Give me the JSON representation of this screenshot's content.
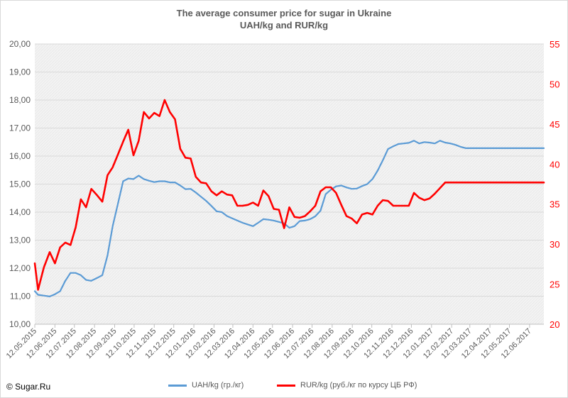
{
  "chart_data": {
    "type": "line",
    "title": "The average consumer price for sugar in Ukraine",
    "subtitle": "UAH/kg and RUR/kg",
    "x_ticks": [
      "12.05.2015",
      "12.06.2015",
      "12.07.2015",
      "12.08.2015",
      "12.09.2015",
      "12.10.2015",
      "12.11.2015",
      "12.12.2015",
      "12.01.2016",
      "12.02.2016",
      "12.03.2016",
      "12.04.2016",
      "12.05.2016",
      "12.06.2016",
      "12.07.2016",
      "12.08.2016",
      "12.09.2016",
      "12.10.2016",
      "12.11.2016",
      "12.12.2016",
      "12.01.2017",
      "12.02.2017",
      "12.03.2017",
      "12.04.2017",
      "12.05.2017",
      "12.06.2017"
    ],
    "y_left": {
      "ylim": [
        10,
        20
      ],
      "ticks": [
        "10,00",
        "11,00",
        "12,00",
        "13,00",
        "14,00",
        "15,00",
        "16,00",
        "17,00",
        "18,00",
        "19,00",
        "20,00"
      ]
    },
    "y_right": {
      "ylim": [
        20,
        55
      ],
      "ticks": [
        "20",
        "25",
        "30",
        "35",
        "40",
        "45",
        "50",
        "55"
      ]
    },
    "grid": "horizontal",
    "legend_position": "bottom",
    "colors": {
      "uah": "#5b9bd5",
      "rur": "#ff0000",
      "plot_bg": "#f2f2f2",
      "grid": "#d9d9d9"
    },
    "series": [
      {
        "name": "UAH/kg  (гр./кг)",
        "axis": "left",
        "x": [
          "12.05.2015",
          "17.05.2015",
          "26.05.2015",
          "04.06.2015",
          "12.06.2015",
          "20.06.2015",
          "28.06.2015",
          "06.07.2015",
          "14.07.2015",
          "22.07.2015",
          "30.07.2015",
          "07.08.2015",
          "16.08.2015",
          "24.08.2015",
          "01.09.2015",
          "09.09.2015",
          "17.09.2015",
          "25.09.2015",
          "03.10.2015",
          "11.10.2015",
          "19.10.2015",
          "27.10.2015",
          "04.11.2015",
          "12.11.2015",
          "20.11.2015",
          "28.11.2015",
          "06.12.2015",
          "14.12.2015",
          "22.12.2015",
          "30.12.2015",
          "07.01.2016",
          "15.01.2016",
          "23.01.2016",
          "31.01.2016",
          "08.02.2016",
          "16.02.2016",
          "24.02.2016",
          "03.03.2016",
          "11.03.2016",
          "19.03.2016",
          "27.03.2016",
          "04.04.2016",
          "12.04.2016",
          "20.04.2016",
          "28.04.2016",
          "06.05.2016",
          "14.05.2016",
          "22.05.2016",
          "30.05.2016",
          "07.06.2016",
          "15.06.2016",
          "23.06.2016",
          "01.07.2016",
          "09.07.2016",
          "17.07.2016",
          "25.07.2016",
          "02.08.2016",
          "10.08.2016",
          "18.08.2016",
          "26.08.2016",
          "03.09.2016",
          "11.09.2016",
          "19.09.2016",
          "27.09.2016",
          "05.10.2016",
          "13.10.2016",
          "21.10.2016",
          "29.10.2016",
          "06.11.2016",
          "14.11.2016",
          "22.11.2016",
          "30.11.2016",
          "08.12.2016",
          "16.12.2016",
          "24.12.2016",
          "01.01.2017",
          "09.01.2017",
          "17.01.2017",
          "25.01.2017",
          "02.02.2017",
          "10.02.2017",
          "18.02.2017",
          "26.02.2017",
          "06.03.2017",
          "14.03.2017",
          "22.03.2017",
          "30.03.2017",
          "07.04.2017",
          "15.04.2017",
          "23.04.2017",
          "01.05.2017",
          "09.05.2017",
          "17.05.2017",
          "25.05.2017",
          "02.06.2017",
          "10.06.2017",
          "18.06.2017",
          "26.06.2017",
          "04.07.2017"
        ],
        "values": [
          11.18,
          11.05,
          11.02,
          10.99,
          11.07,
          11.18,
          11.55,
          11.83,
          11.83,
          11.75,
          11.58,
          11.55,
          11.65,
          11.75,
          12.45,
          13.5,
          14.3,
          15.1,
          15.2,
          15.18,
          15.3,
          15.18,
          15.12,
          15.07,
          15.1,
          15.1,
          15.06,
          15.06,
          14.95,
          14.82,
          14.83,
          14.7,
          14.55,
          14.4,
          14.22,
          14.03,
          14.0,
          13.86,
          13.78,
          13.7,
          13.62,
          13.56,
          13.5,
          13.62,
          13.75,
          13.73,
          13.7,
          13.65,
          13.6,
          13.44,
          13.5,
          13.68,
          13.7,
          13.75,
          13.85,
          14.05,
          14.64,
          14.8,
          14.92,
          14.95,
          14.88,
          14.83,
          14.84,
          14.93,
          15.0,
          15.18,
          15.48,
          15.85,
          16.25,
          16.35,
          16.43,
          16.45,
          16.47,
          16.55,
          16.45,
          16.5,
          16.48,
          16.45,
          16.55,
          16.48,
          16.45,
          16.4,
          16.33,
          16.28,
          16.28,
          16.28,
          16.28,
          16.28,
          16.28,
          16.28,
          16.28,
          16.28,
          16.28,
          16.28,
          16.28,
          16.28,
          16.28,
          16.28,
          16.28
        ]
      },
      {
        "name": "RUR/kg (руб./кг по курсу ЦБ РФ)",
        "axis": "right",
        "x": [
          "12.05.2015",
          "17.05.2015",
          "26.05.2015",
          "04.06.2015",
          "12.06.2015",
          "20.06.2015",
          "28.06.2015",
          "06.07.2015",
          "14.07.2015",
          "22.07.2015",
          "30.07.2015",
          "07.08.2015",
          "16.08.2015",
          "24.08.2015",
          "01.09.2015",
          "09.09.2015",
          "17.09.2015",
          "25.09.2015",
          "03.10.2015",
          "11.10.2015",
          "19.10.2015",
          "27.10.2015",
          "04.11.2015",
          "12.11.2015",
          "20.11.2015",
          "28.11.2015",
          "06.12.2015",
          "14.12.2015",
          "22.12.2015",
          "30.12.2015",
          "07.01.2016",
          "15.01.2016",
          "23.01.2016",
          "31.01.2016",
          "08.02.2016",
          "16.02.2016",
          "24.02.2016",
          "03.03.2016",
          "11.03.2016",
          "19.03.2016",
          "27.03.2016",
          "04.04.2016",
          "12.04.2016",
          "20.04.2016",
          "28.04.2016",
          "06.05.2016",
          "14.05.2016",
          "22.05.2016",
          "30.05.2016",
          "07.06.2016",
          "15.06.2016",
          "23.06.2016",
          "01.07.2016",
          "09.07.2016",
          "17.07.2016",
          "25.07.2016",
          "02.08.2016",
          "10.08.2016",
          "18.08.2016",
          "26.08.2016",
          "03.09.2016",
          "11.09.2016",
          "19.09.2016",
          "27.09.2016",
          "05.10.2016",
          "13.10.2016",
          "21.10.2016",
          "29.10.2016",
          "06.11.2016",
          "14.11.2016",
          "22.11.2016",
          "30.11.2016",
          "08.12.2016",
          "16.12.2016",
          "24.12.2016",
          "01.01.2017",
          "09.01.2017",
          "17.01.2017",
          "25.01.2017",
          "02.02.2017",
          "10.02.2017",
          "18.02.2017",
          "26.02.2017",
          "06.03.2017",
          "14.03.2017",
          "22.03.2017",
          "30.03.2017",
          "07.04.2017",
          "15.04.2017",
          "23.04.2017",
          "01.05.2017",
          "09.05.2017",
          "17.05.2017",
          "25.05.2017",
          "02.06.2017",
          "10.06.2017",
          "18.06.2017",
          "26.06.2017",
          "04.07.2017"
        ],
        "values": [
          27.6,
          24.3,
          27.1,
          29.0,
          27.6,
          29.6,
          30.2,
          29.9,
          32.1,
          35.6,
          34.6,
          36.9,
          36.1,
          35.3,
          38.6,
          39.6,
          41.2,
          42.8,
          44.3,
          41.1,
          42.9,
          46.5,
          45.7,
          46.4,
          46.0,
          48.0,
          46.5,
          45.6,
          41.9,
          40.8,
          40.7,
          38.4,
          37.7,
          37.6,
          36.6,
          36.1,
          36.6,
          36.2,
          36.1,
          34.8,
          34.8,
          34.9,
          35.2,
          34.8,
          36.7,
          36.0,
          34.4,
          34.3,
          32.0,
          34.6,
          33.4,
          33.3,
          33.5,
          34.1,
          34.8,
          36.6,
          37.1,
          37.1,
          36.4,
          34.9,
          33.5,
          33.2,
          32.6,
          33.7,
          33.9,
          33.7,
          34.8,
          35.5,
          35.4,
          34.8,
          34.8,
          34.8,
          34.8,
          36.4,
          35.8,
          35.5,
          35.7,
          36.3,
          37.0,
          37.7,
          37.7,
          37.7,
          37.7,
          37.7,
          37.7,
          37.7,
          37.7,
          37.7,
          37.7,
          37.7,
          37.7,
          37.7,
          37.7,
          37.7,
          37.7,
          37.7,
          37.7,
          37.7,
          37.7
        ]
      }
    ]
  },
  "legend": {
    "uah_label": "UAH/kg  (гр./кг)",
    "rur_label": "RUR/kg (руб./кг по курсу ЦБ РФ)"
  },
  "copyright": "© Sugar.Ru"
}
